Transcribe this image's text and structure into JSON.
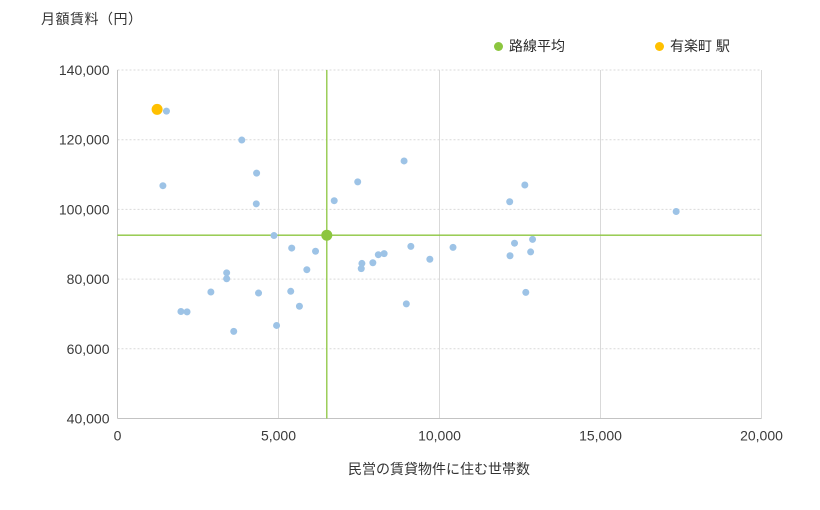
{
  "chart_data": {
    "type": "scatter",
    "title": "",
    "ylabel": "月額賃料（円）",
    "xlabel": "民営の賃貸物件に住む世帯数",
    "xlim": [
      0,
      20000
    ],
    "ylim": [
      40000,
      140000
    ],
    "grid": true,
    "legend_position": "top",
    "x_ticks": [
      {
        "v": 0,
        "label": "0"
      },
      {
        "v": 5000,
        "label": "5,000"
      },
      {
        "v": 10000,
        "label": "10,000"
      },
      {
        "v": 15000,
        "label": "15,000"
      },
      {
        "v": 20000,
        "label": "20,000"
      }
    ],
    "y_ticks": [
      {
        "v": 40000,
        "label": "40,000"
      },
      {
        "v": 60000,
        "label": "60,000"
      },
      {
        "v": 80000,
        "label": "80,000"
      },
      {
        "v": 100000,
        "label": "100,000"
      },
      {
        "v": 120000,
        "label": "120,000"
      },
      {
        "v": 140000,
        "label": "140,000"
      }
    ],
    "series": [
      {
        "id": "stations",
        "legend": null,
        "color": "#9DC3E6",
        "radius": 3.5,
        "points": [
          [
            1410,
            106800
          ],
          [
            1520,
            128200
          ],
          [
            1970,
            70700
          ],
          [
            2160,
            70600
          ],
          [
            2900,
            76300
          ],
          [
            3390,
            81800
          ],
          [
            3390,
            80100
          ],
          [
            3610,
            65000
          ],
          [
            3860,
            119900
          ],
          [
            4310,
            101600
          ],
          [
            4320,
            110400
          ],
          [
            4380,
            76000
          ],
          [
            4860,
            92500
          ],
          [
            4940,
            66700
          ],
          [
            5380,
            76500
          ],
          [
            5410,
            88900
          ],
          [
            5650,
            72200
          ],
          [
            5880,
            82700
          ],
          [
            6150,
            88000
          ],
          [
            6730,
            102500
          ],
          [
            7460,
            107900
          ],
          [
            7570,
            83000
          ],
          [
            7590,
            84500
          ],
          [
            7930,
            84700
          ],
          [
            8100,
            87000
          ],
          [
            8280,
            87300
          ],
          [
            8900,
            113900
          ],
          [
            8970,
            72900
          ],
          [
            9110,
            89400
          ],
          [
            9700,
            85700
          ],
          [
            10420,
            89100
          ],
          [
            12180,
            102200
          ],
          [
            12190,
            86700
          ],
          [
            12330,
            90300
          ],
          [
            12650,
            107000
          ],
          [
            12680,
            76200
          ],
          [
            12830,
            87800
          ],
          [
            12890,
            91400
          ],
          [
            17350,
            99400
          ]
        ]
      },
      {
        "id": "yurakucho",
        "legend": "有楽町 駅",
        "color": "#FFC000",
        "radius": 5.5,
        "points": [
          [
            1230,
            128700
          ]
        ]
      },
      {
        "id": "line-average",
        "legend": "路線平均",
        "color": "#8CC63F",
        "radius": 5.5,
        "crosshair": true,
        "points": [
          [
            6500,
            92600
          ]
        ]
      }
    ]
  }
}
